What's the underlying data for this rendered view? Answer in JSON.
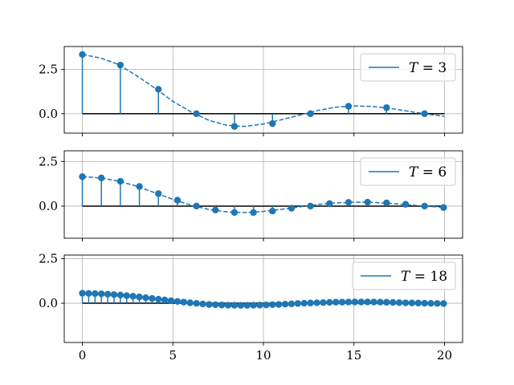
{
  "chart_data": [
    {
      "type": "stem",
      "legend": {
        "symbol": "T",
        "op": " = ",
        "value": "3",
        "placement": "upper-right"
      },
      "xlim": [
        -1,
        21
      ],
      "ylim": [
        -1.1,
        3.8
      ],
      "yticks": [
        {
          "v": -0.0,
          "label": "0.0"
        },
        {
          "v": 2.5,
          "label": "2.5"
        },
        {
          "v": -1.0,
          "label": ""
        }
      ],
      "yticks_visible": [
        {
          "v": 0,
          "label": "0.0"
        },
        {
          "v": 2.5,
          "label": "2.5"
        }
      ],
      "xticks": [
        0,
        5,
        10,
        15,
        20
      ],
      "xtick_labels_visible": false,
      "grid": true,
      "color": "#1f77b4",
      "stem_x": [
        0,
        2.1,
        4.2,
        6.3,
        8.4,
        10.5,
        12.6,
        14.7,
        16.8,
        18.9
      ],
      "stem_y": [
        3.35,
        2.75,
        1.38,
        0.0,
        -0.72,
        -0.56,
        0.0,
        0.42,
        0.34,
        0.0
      ],
      "curve_x": [
        0,
        1,
        2,
        3,
        4,
        5,
        6,
        7,
        8,
        9,
        10,
        11,
        12,
        13,
        14,
        15,
        16,
        17,
        18,
        19,
        20
      ],
      "curve_y": [
        3.35,
        3.15,
        2.78,
        2.15,
        1.45,
        0.7,
        0.1,
        -0.38,
        -0.66,
        -0.72,
        -0.58,
        -0.34,
        -0.08,
        0.18,
        0.37,
        0.44,
        0.41,
        0.3,
        0.14,
        -0.02,
        -0.15
      ]
    },
    {
      "type": "stem",
      "legend": {
        "symbol": "T",
        "op": " = ",
        "value": "6",
        "placement": "upper-right"
      },
      "xlim": [
        -1,
        21
      ],
      "ylim": [
        -1.8,
        3.1
      ],
      "yticks_visible": [
        {
          "v": 0,
          "label": "0.0"
        },
        {
          "v": 2.5,
          "label": "2.5"
        }
      ],
      "xticks": [
        0,
        5,
        10,
        15,
        20
      ],
      "xtick_labels_visible": false,
      "grid": true,
      "color": "#1f77b4",
      "stem_x": [
        0,
        1.05,
        2.1,
        3.15,
        4.2,
        5.25,
        6.3,
        7.35,
        8.4,
        9.45,
        10.5,
        11.55,
        12.6,
        13.65,
        14.7,
        15.75,
        16.8,
        17.85,
        18.9,
        19.95
      ],
      "stem_y": [
        1.65,
        1.58,
        1.39,
        1.1,
        0.7,
        0.33,
        0.0,
        -0.22,
        -0.36,
        -0.36,
        -0.28,
        -0.12,
        0.0,
        0.14,
        0.21,
        0.22,
        0.18,
        0.1,
        0.0,
        -0.08
      ],
      "curve_x": [
        0,
        1,
        2,
        3,
        4,
        5,
        6,
        7,
        8,
        9,
        10,
        11,
        12,
        13,
        14,
        15,
        16,
        17,
        18,
        19,
        20
      ],
      "curve_y": [
        1.65,
        1.58,
        1.4,
        1.12,
        0.75,
        0.38,
        0.05,
        -0.19,
        -0.33,
        -0.36,
        -0.3,
        -0.18,
        -0.04,
        0.09,
        0.18,
        0.22,
        0.21,
        0.15,
        0.07,
        -0.01,
        -0.07
      ]
    },
    {
      "type": "stem",
      "legend": {
        "symbol": "T",
        "op": " = ",
        "value": "18",
        "placement": "upper-right"
      },
      "xlim": [
        -1,
        21
      ],
      "ylim": [
        -2.2,
        2.7
      ],
      "yticks_visible": [
        {
          "v": 0,
          "label": "0.0"
        },
        {
          "v": 2.5,
          "label": "2.5"
        }
      ],
      "xticks": [
        0,
        5,
        10,
        15,
        20
      ],
      "xtick_labels_visible": true,
      "xtick_labels": [
        "0",
        "5",
        "10",
        "15",
        "20"
      ],
      "grid": true,
      "color": "#1f77b4",
      "stem_step": 0.35,
      "stem_count": 58,
      "curve_x": [
        0,
        1,
        2,
        3,
        4,
        5,
        6,
        7,
        8,
        9,
        10,
        11,
        12,
        13,
        14,
        15,
        16,
        17,
        18,
        19,
        20
      ],
      "curve_y": [
        0.56,
        0.53,
        0.47,
        0.37,
        0.25,
        0.13,
        0.02,
        -0.07,
        -0.11,
        -0.12,
        -0.1,
        -0.06,
        -0.01,
        0.03,
        0.06,
        0.07,
        0.07,
        0.05,
        0.02,
        0.0,
        -0.02
      ]
    }
  ]
}
